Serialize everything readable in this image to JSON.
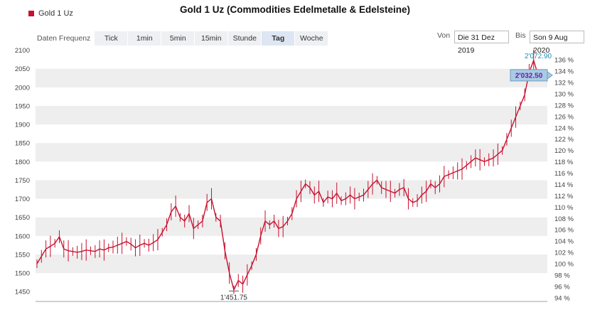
{
  "chart_data": {
    "type": "line",
    "title": "Gold 1 Uz (Commodities Edelmetalle & Edelsteine)",
    "series": [
      {
        "name": "Gold 1 Uz",
        "values": [
          1525,
          1545,
          1565,
          1572,
          1580,
          1598,
          1565,
          1560,
          1558,
          1556,
          1558,
          1562,
          1560,
          1558,
          1565,
          1562,
          1568,
          1570,
          1575,
          1580,
          1585,
          1578,
          1568,
          1575,
          1580,
          1575,
          1582,
          1590,
          1610,
          1630,
          1665,
          1680,
          1650,
          1640,
          1660,
          1620,
          1630,
          1640,
          1690,
          1700,
          1650,
          1640,
          1560,
          1500,
          1455,
          1480,
          1470,
          1495,
          1520,
          1550,
          1600,
          1640,
          1630,
          1640,
          1620,
          1625,
          1640,
          1660,
          1700,
          1720,
          1740,
          1730,
          1710,
          1720,
          1690,
          1705,
          1700,
          1715,
          1695,
          1700,
          1710,
          1700,
          1705,
          1710,
          1725,
          1740,
          1750,
          1730,
          1725,
          1720,
          1715,
          1725,
          1730,
          1700,
          1690,
          1695,
          1710,
          1720,
          1740,
          1730,
          1740,
          1760,
          1765,
          1770,
          1775,
          1780,
          1790,
          1800,
          1810,
          1805,
          1800,
          1805,
          1810,
          1820,
          1830,
          1860,
          1890,
          1920,
          1950,
          1980,
          2040,
          2072.9,
          2032.5
        ]
      }
    ],
    "categories_label": "trading days 31 Dez 2019 – 9 Aug 2020",
    "ylim": [
      1435,
      2105
    ],
    "yticks_left": [
      "2100",
      "2050",
      "2000",
      "1950",
      "1900",
      "1850",
      "1800",
      "1750",
      "1700",
      "1650",
      "1600",
      "1550",
      "1500",
      "1450"
    ],
    "yticks_right": [
      "136 %",
      "134 %",
      "132 %",
      "130 %",
      "128 %",
      "126 %",
      "124 %",
      "122 %",
      "120 %",
      "118 %",
      "116 %",
      "114 %",
      "112 %",
      "110 %",
      "108 %",
      "106 %",
      "104 %",
      "102 %",
      "100 %",
      "98 %",
      "96 %",
      "94 %"
    ],
    "high_label": "2'072.90",
    "last_label": "2'032.50",
    "low_label": "1'451.75",
    "grid": true,
    "legend_position": "top-left"
  },
  "legend": {
    "label": "Gold 1 Uz"
  },
  "toolbar": {
    "label": "Daten Frequenz",
    "buttons": [
      "Tick",
      "1min",
      "5min",
      "15min",
      "Stunde",
      "Tag",
      "Woche"
    ],
    "active": "Tag"
  },
  "range": {
    "from_label": "Von",
    "from_value": "Die 31 Dez 2019",
    "to_label": "Bis",
    "to_value": "Son 9 Aug 2020"
  },
  "colors": {
    "series": "#c8102e",
    "band": "#eeeeee",
    "last_box": "#a9cbe3",
    "high_text": "#1d8fb5",
    "last_text": "#6a1aa8"
  }
}
